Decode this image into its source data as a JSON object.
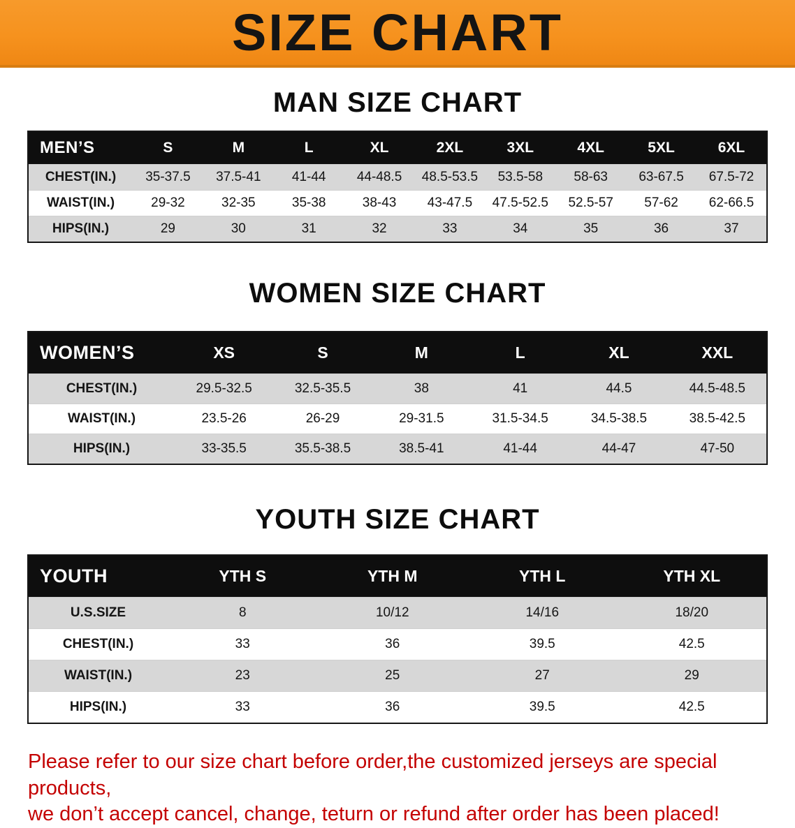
{
  "banner": {
    "title": "SIZE CHART",
    "bg_color": "#f6921e",
    "text_color": "#141414"
  },
  "sections": [
    {
      "title": "MAN SIZE CHART",
      "table": {
        "header": [
          "MEN’S",
          "S",
          "M",
          "L",
          "XL",
          "2XL",
          "3XL",
          "4XL",
          "5XL",
          "6XL"
        ],
        "rows": [
          [
            "CHEST(IN.)",
            "35-37.5",
            "37.5-41",
            "41-44",
            "44-48.5",
            "48.5-53.5",
            "53.5-58",
            "58-63",
            "63-67.5",
            "67.5-72"
          ],
          [
            "WAIST(IN.)",
            "29-32",
            "32-35",
            "35-38",
            "38-43",
            "43-47.5",
            "47.5-52.5",
            "52.5-57",
            "57-62",
            "62-66.5"
          ],
          [
            "HIPS(IN.)",
            "29",
            "30",
            "31",
            "32",
            "33",
            "34",
            "35",
            "36",
            "37"
          ]
        ]
      }
    },
    {
      "title": "WOMEN SIZE CHART",
      "table": {
        "header": [
          "WOMEN’S",
          "XS",
          "S",
          "M",
          "L",
          "XL",
          "XXL"
        ],
        "rows": [
          [
            "CHEST(IN.)",
            "29.5-32.5",
            "32.5-35.5",
            "38",
            "41",
            "44.5",
            "44.5-48.5"
          ],
          [
            "WAIST(IN.)",
            "23.5-26",
            "26-29",
            "29-31.5",
            "31.5-34.5",
            "34.5-38.5",
            "38.5-42.5"
          ],
          [
            "HIPS(IN.)",
            "33-35.5",
            "35.5-38.5",
            "38.5-41",
            "41-44",
            "44-47",
            "47-50"
          ]
        ]
      }
    },
    {
      "title": "YOUTH SIZE CHART",
      "table": {
        "header": [
          "YOUTH",
          "YTH S",
          "YTH M",
          "YTH L",
          "YTH XL"
        ],
        "rows": [
          [
            "U.S.SIZE",
            "8",
            "10/12",
            "14/16",
            "18/20"
          ],
          [
            "CHEST(IN.)",
            "33",
            "36",
            "39.5",
            "42.5"
          ],
          [
            "WAIST(IN.)",
            "23",
            "25",
            "27",
            "29"
          ],
          [
            "HIPS(IN.)",
            "33",
            "36",
            "39.5",
            "42.5"
          ]
        ]
      }
    }
  ],
  "footer": {
    "line1": "Please refer to our size chart before order,the customized jerseys are special products,",
    "line2": "we don’t accept cancel, change, teturn or refund after order has been placed!",
    "color": "#c40202"
  },
  "colors": {
    "banner_orange": "#f6921e",
    "header_black": "#0e0e0e",
    "stripe_gray": "#d7d7d7",
    "notice_red": "#c40202"
  }
}
